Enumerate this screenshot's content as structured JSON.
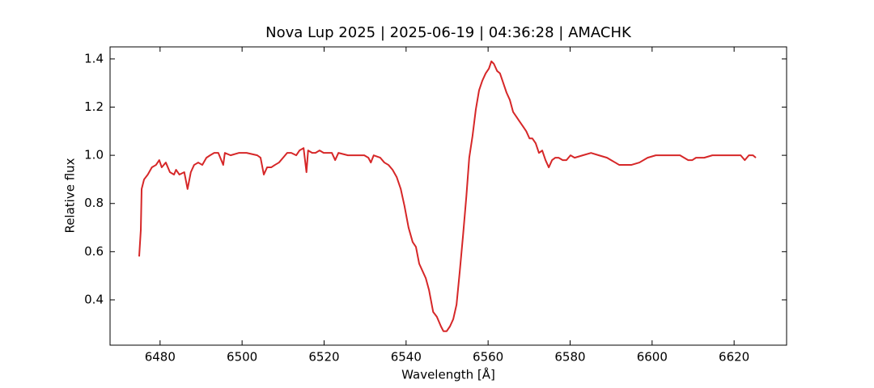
{
  "chart_data": {
    "type": "line",
    "title": "Nova Lup 2025 | 2025-06-19 | 04:36:28 | AMACHK",
    "xlabel": "Wavelength [Å]",
    "ylabel": "Relative flux",
    "color": "#d62728",
    "xlim": [
      6467.8,
      6632.8
    ],
    "ylim": [
      0.212,
      1.45
    ],
    "xticks": [
      6480,
      6500,
      6520,
      6540,
      6560,
      6580,
      6600,
      6620
    ],
    "yticks": [
      0.4,
      0.6,
      0.8,
      {
        "value": 1,
        "label": "1.0"
      },
      1.2,
      1.4
    ],
    "grid": false,
    "x": [
      6474.9,
      6475.3,
      6475.5,
      6476.1,
      6477.0,
      6478.0,
      6479.0,
      6479.8,
      6480.4,
      6481.4,
      6482.4,
      6483.4,
      6483.9,
      6484.7,
      6485.9,
      6486.7,
      6487.5,
      6488.3,
      6489.3,
      6490.3,
      6491.3,
      6492.2,
      6493.2,
      6494.2,
      6495.4,
      6495.8,
      6497.2,
      6499.2,
      6501.1,
      6503.7,
      6504.5,
      6505.3,
      6506.1,
      6507.1,
      6508.0,
      6509.0,
      6510.0,
      6511.0,
      6512.0,
      6513.2,
      6514.0,
      6515.0,
      6515.7,
      6516.1,
      6517.1,
      6517.9,
      6518.9,
      6519.9,
      6521.9,
      6522.7,
      6523.5,
      6525.8,
      6527.8,
      6529.8,
      6530.8,
      6531.4,
      6532.1,
      6533.7,
      6534.7,
      6535.7,
      6536.7,
      6537.7,
      6538.7,
      6539.6,
      6540.6,
      6541.6,
      6542.4,
      6543.2,
      6544.0,
      6544.8,
      6545.6,
      6546.6,
      6547.5,
      6548.5,
      6549.1,
      6549.9,
      6550.7,
      6551.5,
      6552.3,
      6553.1,
      6553.9,
      6554.7,
      6555.4,
      6556.2,
      6557.0,
      6557.8,
      6558.6,
      6559.4,
      6560.2,
      6560.8,
      6561.4,
      6562.2,
      6562.9,
      6563.7,
      6564.5,
      6565.3,
      6566.1,
      6566.9,
      6567.7,
      6568.5,
      6569.3,
      6570.1,
      6570.8,
      6571.6,
      6572.4,
      6573.2,
      6574.0,
      6574.8,
      6575.6,
      6576.4,
      6577.2,
      6578.2,
      6579.1,
      6580.1,
      6581.1,
      6583.1,
      6585.1,
      6587.0,
      6589.0,
      6590.0,
      6591.0,
      6592.0,
      6593.0,
      6594.9,
      6596.9,
      6598.9,
      6600.9,
      6602.8,
      6604.8,
      6606.8,
      6607.8,
      6608.8,
      6609.8,
      6610.7,
      6612.7,
      6614.7,
      6616.7,
      6618.6,
      6621.6,
      6622.6,
      6623.6,
      6624.6,
      6625.3
    ],
    "values": [
      0.58,
      0.69,
      0.86,
      0.9,
      0.92,
      0.95,
      0.96,
      0.98,
      0.95,
      0.97,
      0.93,
      0.92,
      0.94,
      0.92,
      0.93,
      0.86,
      0.93,
      0.96,
      0.97,
      0.96,
      0.99,
      1.0,
      1.01,
      1.01,
      0.96,
      1.01,
      1.0,
      1.01,
      1.01,
      1.0,
      0.99,
      0.92,
      0.95,
      0.95,
      0.96,
      0.97,
      0.99,
      1.01,
      1.01,
      1.0,
      1.02,
      1.03,
      0.93,
      1.02,
      1.01,
      1.01,
      1.02,
      1.01,
      1.01,
      0.98,
      1.01,
      1.0,
      1.0,
      1.0,
      0.99,
      0.97,
      1.0,
      0.99,
      0.97,
      0.96,
      0.94,
      0.91,
      0.86,
      0.79,
      0.7,
      0.64,
      0.62,
      0.55,
      0.52,
      0.49,
      0.44,
      0.35,
      0.33,
      0.29,
      0.27,
      0.27,
      0.29,
      0.32,
      0.38,
      0.52,
      0.67,
      0.83,
      0.99,
      1.08,
      1.19,
      1.27,
      1.31,
      1.34,
      1.36,
      1.39,
      1.38,
      1.35,
      1.34,
      1.3,
      1.26,
      1.23,
      1.18,
      1.16,
      1.14,
      1.12,
      1.1,
      1.07,
      1.07,
      1.05,
      1.01,
      1.02,
      0.98,
      0.95,
      0.98,
      0.99,
      0.99,
      0.98,
      0.98,
      1.0,
      0.99,
      1.0,
      1.01,
      1.0,
      0.99,
      0.98,
      0.97,
      0.96,
      0.96,
      0.96,
      0.97,
      0.99,
      1.0,
      1.0,
      1.0,
      1.0,
      0.99,
      0.98,
      0.98,
      0.99,
      0.99,
      1.0,
      1.0,
      1.0,
      1.0,
      0.98,
      1.0,
      1.0,
      0.99
    ]
  }
}
